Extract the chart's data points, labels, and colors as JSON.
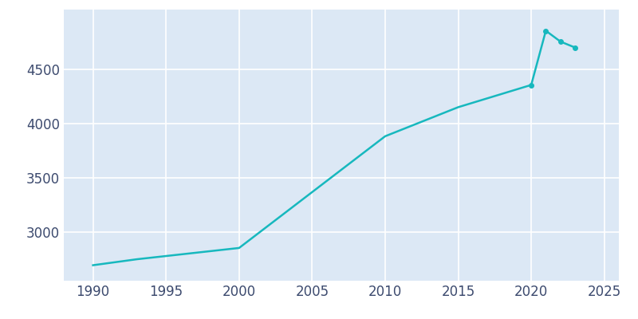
{
  "years": [
    1990,
    1993,
    2000,
    2010,
    2015,
    2020,
    2021,
    2022,
    2023
  ],
  "population": [
    2693,
    2748,
    2852,
    3882,
    4150,
    4355,
    4855,
    4755,
    4700
  ],
  "line_color": "#17b8be",
  "plot_bg_color": "#dce8f5",
  "fig_bg_color": "#ffffff",
  "grid_color": "#ffffff",
  "text_color": "#3c4a6e",
  "xlim": [
    1988,
    2026
  ],
  "ylim": [
    2550,
    5050
  ],
  "xticks": [
    1990,
    1995,
    2000,
    2005,
    2010,
    2015,
    2020,
    2025
  ],
  "yticks": [
    3000,
    3500,
    4000,
    4500
  ],
  "linewidth": 1.8,
  "marker_years": [
    2020,
    2021,
    2022,
    2023
  ],
  "figsize": [
    8.0,
    4.0
  ],
  "dpi": 100
}
